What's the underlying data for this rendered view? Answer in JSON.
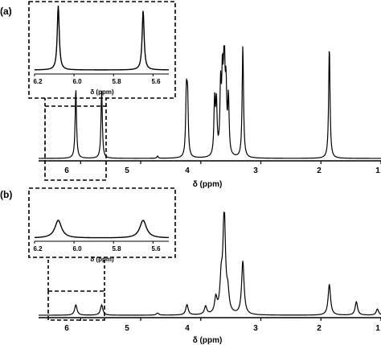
{
  "chart_data": [
    {
      "type": "line",
      "panel_label": "(a)",
      "xlabel": "δ (ppm)",
      "x_ticks": [
        "6",
        "5",
        "4",
        "3",
        "2",
        "1"
      ],
      "xlim": [
        6.7,
        1.0
      ],
      "axis_reversed": true,
      "peaks": [
        {
          "ppm": 6.08,
          "height": 0.62
        },
        {
          "ppm": 5.65,
          "height": 0.6
        },
        {
          "ppm": 4.72,
          "height": 0.02
        },
        {
          "ppm": 4.24,
          "height": 0.54
        },
        {
          "ppm": 4.22,
          "height": 0.5
        },
        {
          "ppm": 3.77,
          "height": 0.48
        },
        {
          "ppm": 3.74,
          "height": 0.46
        },
        {
          "ppm": 3.67,
          "height": 0.58
        },
        {
          "ppm": 3.64,
          "height": 0.64
        },
        {
          "ppm": 3.61,
          "height": 1.0
        },
        {
          "ppm": 3.58,
          "height": 0.55
        },
        {
          "ppm": 3.54,
          "height": 0.5
        },
        {
          "ppm": 3.3,
          "height": 1.0
        },
        {
          "ppm": 1.86,
          "height": 1.0
        }
      ],
      "inset": {
        "xlabel": "δ (ppm)",
        "x_ticks": [
          "6.2",
          "6.0",
          "5.8",
          "5.6"
        ],
        "xlim": [
          6.2,
          5.52
        ],
        "peaks": [
          {
            "ppm": 6.08,
            "height": 1.0
          },
          {
            "ppm": 5.65,
            "height": 0.92
          }
        ]
      }
    },
    {
      "type": "line",
      "panel_label": "(b)",
      "xlabel": "δ (ppm)",
      "x_ticks": [
        "6",
        "5",
        "4",
        "3",
        "2",
        "1"
      ],
      "xlim": [
        6.7,
        1.0
      ],
      "axis_reversed": true,
      "peaks": [
        {
          "ppm": 6.08,
          "height": 0.1
        },
        {
          "ppm": 5.65,
          "height": 0.1
        },
        {
          "ppm": 4.72,
          "height": 0.02
        },
        {
          "ppm": 4.23,
          "height": 0.1
        },
        {
          "ppm": 3.92,
          "height": 0.08
        },
        {
          "ppm": 3.75,
          "height": 0.15
        },
        {
          "ppm": 3.66,
          "height": 0.3
        },
        {
          "ppm": 3.61,
          "height": 1.0
        },
        {
          "ppm": 3.55,
          "height": 0.18
        },
        {
          "ppm": 3.3,
          "height": 0.52
        },
        {
          "ppm": 1.86,
          "height": 0.3
        },
        {
          "ppm": 1.41,
          "height": 0.13
        },
        {
          "ppm": 1.06,
          "height": 0.06
        }
      ],
      "inset": {
        "xlabel": "δ (ppm)",
        "x_ticks": [
          "6.2",
          "6.0",
          "5.8",
          "5.6"
        ],
        "xlim": [
          6.2,
          5.52
        ],
        "peaks": [
          {
            "ppm": 6.08,
            "height": 0.55
          },
          {
            "ppm": 5.65,
            "height": 0.55
          }
        ]
      }
    }
  ]
}
